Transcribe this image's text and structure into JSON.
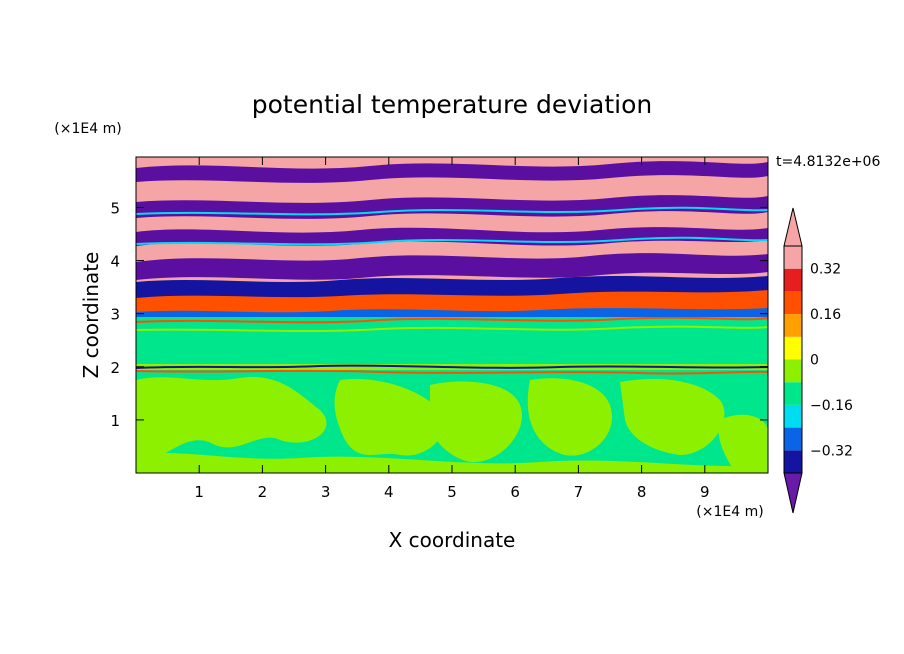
{
  "chart_data": {
    "type": "heatmap",
    "title": "potential temperature deviation",
    "xlabel": "X coordinate",
    "ylabel": "Z coordinate",
    "x_unit": "(×1E4 m)",
    "y_unit": "(×1E4 m)",
    "time_label": "t=4.8132e+06",
    "xlim": [
      0,
      10
    ],
    "ylim": [
      0,
      5.95
    ],
    "xticks": [
      "1",
      "2",
      "3",
      "4",
      "5",
      "6",
      "7",
      "8",
      "9"
    ],
    "yticks": [
      "1",
      "2",
      "3",
      "4",
      "5"
    ],
    "colorbar": {
      "tick_labels": [
        "0.32",
        "0.16",
        "0",
        "−0.16",
        "−0.32"
      ],
      "tick_values": [
        0.32,
        0.16,
        0,
        -0.16,
        -0.32
      ],
      "levels": [
        -0.4,
        -0.32,
        -0.24,
        -0.16,
        -0.08,
        0,
        0.08,
        0.16,
        0.24,
        0.32,
        0.4
      ],
      "colors": [
        "#5a0fa0",
        "#1414a0",
        "#0a64e6",
        "#00dcf0",
        "#00e68c",
        "#8cf000",
        "#ffff00",
        "#ffa000",
        "#ff5000",
        "#e61e1e",
        "#f5a5a5"
      ],
      "under_color": "#6a1aa8",
      "over_color": "#f5a5a5"
    },
    "regions": [
      {
        "z_range": [
          0,
          1.9
        ],
        "description": "mixed weak perturbations",
        "dominant_values": [
          0,
          0.08
        ]
      },
      {
        "z_range": [
          1.9,
          2.05
        ],
        "description": "thin strong-gradient layer",
        "dominant_values": [
          -0.32,
          0.32
        ]
      },
      {
        "z_range": [
          2.05,
          3.0
        ],
        "description": "near-zero layer",
        "dominant_values": [
          0
        ]
      },
      {
        "z_range": [
          3.0,
          5.95
        ],
        "description": "alternating strong positive/negative layers",
        "dominant_values": [
          -0.4,
          0.4
        ]
      }
    ]
  }
}
